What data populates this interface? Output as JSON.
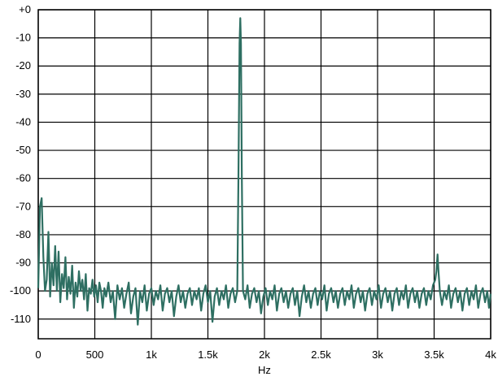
{
  "chart_data": {
    "type": "line",
    "title": "",
    "xlabel": "Hz",
    "ylabel": "",
    "xlim": [
      0,
      4000
    ],
    "ylim": [
      -117,
      0
    ],
    "grid": true,
    "x_ticks": [
      {
        "value": 0,
        "label": "0"
      },
      {
        "value": 500,
        "label": "500"
      },
      {
        "value": 1000,
        "label": "1k"
      },
      {
        "value": 1500,
        "label": "1.5k"
      },
      {
        "value": 2000,
        "label": "2k"
      },
      {
        "value": 2500,
        "label": "2.5k"
      },
      {
        "value": 3000,
        "label": "3k"
      },
      {
        "value": 3500,
        "label": "3.5k"
      },
      {
        "value": 4000,
        "label": "4k"
      }
    ],
    "y_ticks": [
      {
        "value": 0,
        "label": "+0"
      },
      {
        "value": -10,
        "label": "-10"
      },
      {
        "value": -20,
        "label": "-20"
      },
      {
        "value": -30,
        "label": "-30"
      },
      {
        "value": -40,
        "label": "-40"
      },
      {
        "value": -50,
        "label": "-50"
      },
      {
        "value": -60,
        "label": "-60"
      },
      {
        "value": -70,
        "label": "-70"
      },
      {
        "value": -80,
        "label": "-80"
      },
      {
        "value": -90,
        "label": "-90"
      },
      {
        "value": -100,
        "label": "-100"
      },
      {
        "value": -110,
        "label": "-110"
      }
    ],
    "series": [
      {
        "color": "#2e6f62",
        "points": [
          [
            0,
            -99
          ],
          [
            15,
            -70
          ],
          [
            30,
            -67
          ],
          [
            45,
            -88
          ],
          [
            60,
            -100
          ],
          [
            75,
            -96
          ],
          [
            90,
            -79
          ],
          [
            105,
            -102
          ],
          [
            120,
            -90
          ],
          [
            135,
            -98
          ],
          [
            150,
            -84
          ],
          [
            165,
            -100
          ],
          [
            180,
            -86
          ],
          [
            195,
            -104
          ],
          [
            210,
            -94
          ],
          [
            225,
            -99
          ],
          [
            240,
            -88
          ],
          [
            255,
            -103
          ],
          [
            270,
            -95
          ],
          [
            285,
            -101
          ],
          [
            300,
            -91
          ],
          [
            315,
            -106
          ],
          [
            330,
            -97
          ],
          [
            345,
            -102
          ],
          [
            360,
            -93
          ],
          [
            375,
            -100
          ],
          [
            390,
            -96
          ],
          [
            405,
            -103
          ],
          [
            420,
            -94
          ],
          [
            435,
            -107
          ],
          [
            450,
            -99
          ],
          [
            465,
            -101
          ],
          [
            480,
            -96
          ],
          [
            495,
            -102
          ],
          [
            510,
            -98
          ],
          [
            525,
            -104
          ],
          [
            540,
            -97
          ],
          [
            555,
            -100
          ],
          [
            570,
            -106
          ],
          [
            585,
            -99
          ],
          [
            600,
            -102
          ],
          [
            620,
            -97
          ],
          [
            640,
            -104
          ],
          [
            660,
            -100
          ],
          [
            680,
            -110
          ],
          [
            700,
            -98
          ],
          [
            720,
            -103
          ],
          [
            740,
            -99
          ],
          [
            760,
            -106
          ],
          [
            780,
            -101
          ],
          [
            800,
            -97
          ],
          [
            820,
            -108
          ],
          [
            840,
            -102
          ],
          [
            860,
            -99
          ],
          [
            880,
            -112
          ],
          [
            900,
            -100
          ],
          [
            920,
            -104
          ],
          [
            940,
            -98
          ],
          [
            960,
            -107
          ],
          [
            980,
            -101
          ],
          [
            1000,
            -99
          ],
          [
            1020,
            -105
          ],
          [
            1040,
            -100
          ],
          [
            1060,
            -103
          ],
          [
            1080,
            -98
          ],
          [
            1100,
            -107
          ],
          [
            1120,
            -101
          ],
          [
            1140,
            -99
          ],
          [
            1160,
            -104
          ],
          [
            1180,
            -100
          ],
          [
            1200,
            -109
          ],
          [
            1220,
            -102
          ],
          [
            1240,
            -98
          ],
          [
            1260,
            -104
          ],
          [
            1280,
            -100
          ],
          [
            1300,
            -106
          ],
          [
            1320,
            -101
          ],
          [
            1340,
            -99
          ],
          [
            1360,
            -105
          ],
          [
            1380,
            -100
          ],
          [
            1400,
            -103
          ],
          [
            1420,
            -99
          ],
          [
            1440,
            -107
          ],
          [
            1460,
            -101
          ],
          [
            1480,
            -98
          ],
          [
            1500,
            -104
          ],
          [
            1520,
            -100
          ],
          [
            1540,
            -111
          ],
          [
            1560,
            -102
          ],
          [
            1580,
            -99
          ],
          [
            1600,
            -105
          ],
          [
            1620,
            -100
          ],
          [
            1640,
            -103
          ],
          [
            1660,
            -98
          ],
          [
            1680,
            -106
          ],
          [
            1700,
            -101
          ],
          [
            1720,
            -99
          ],
          [
            1740,
            -104
          ],
          [
            1760,
            -100
          ],
          [
            1770,
            -60
          ],
          [
            1780,
            -12
          ],
          [
            1786,
            -3
          ],
          [
            1792,
            -12
          ],
          [
            1800,
            -60
          ],
          [
            1810,
            -100
          ],
          [
            1830,
            -103
          ],
          [
            1850,
            -98
          ],
          [
            1870,
            -106
          ],
          [
            1890,
            -101
          ],
          [
            1910,
            -99
          ],
          [
            1930,
            -104
          ],
          [
            1950,
            -100
          ],
          [
            1970,
            -108
          ],
          [
            1990,
            -102
          ],
          [
            2010,
            -99
          ],
          [
            2030,
            -105
          ],
          [
            2050,
            -100
          ],
          [
            2070,
            -103
          ],
          [
            2090,
            -98
          ],
          [
            2110,
            -107
          ],
          [
            2130,
            -101
          ],
          [
            2150,
            -99
          ],
          [
            2170,
            -104
          ],
          [
            2190,
            -100
          ],
          [
            2210,
            -106
          ],
          [
            2230,
            -101
          ],
          [
            2250,
            -99
          ],
          [
            2270,
            -105
          ],
          [
            2290,
            -100
          ],
          [
            2310,
            -109
          ],
          [
            2330,
            -102
          ],
          [
            2350,
            -98
          ],
          [
            2370,
            -104
          ],
          [
            2390,
            -100
          ],
          [
            2410,
            -106
          ],
          [
            2430,
            -101
          ],
          [
            2450,
            -99
          ],
          [
            2470,
            -105
          ],
          [
            2490,
            -100
          ],
          [
            2510,
            -103
          ],
          [
            2530,
            -98
          ],
          [
            2550,
            -107
          ],
          [
            2570,
            -101
          ],
          [
            2590,
            -99
          ],
          [
            2610,
            -104
          ],
          [
            2630,
            -100
          ],
          [
            2650,
            -106
          ],
          [
            2670,
            -101
          ],
          [
            2690,
            -99
          ],
          [
            2710,
            -105
          ],
          [
            2730,
            -100
          ],
          [
            2750,
            -103
          ],
          [
            2770,
            -98
          ],
          [
            2790,
            -106
          ],
          [
            2810,
            -101
          ],
          [
            2830,
            -99
          ],
          [
            2850,
            -104
          ],
          [
            2870,
            -100
          ],
          [
            2890,
            -107
          ],
          [
            2910,
            -101
          ],
          [
            2930,
            -99
          ],
          [
            2950,
            -105
          ],
          [
            2970,
            -100
          ],
          [
            2990,
            -103
          ],
          [
            3010,
            -98
          ],
          [
            3030,
            -106
          ],
          [
            3050,
            -101
          ],
          [
            3070,
            -99
          ],
          [
            3090,
            -104
          ],
          [
            3110,
            -100
          ],
          [
            3130,
            -107
          ],
          [
            3150,
            -101
          ],
          [
            3170,
            -99
          ],
          [
            3190,
            -105
          ],
          [
            3210,
            -100
          ],
          [
            3230,
            -103
          ],
          [
            3250,
            -98
          ],
          [
            3270,
            -106
          ],
          [
            3290,
            -101
          ],
          [
            3310,
            -99
          ],
          [
            3330,
            -104
          ],
          [
            3350,
            -100
          ],
          [
            3370,
            -106
          ],
          [
            3390,
            -101
          ],
          [
            3410,
            -99
          ],
          [
            3430,
            -105
          ],
          [
            3450,
            -100
          ],
          [
            3470,
            -103
          ],
          [
            3490,
            -98
          ],
          [
            3510,
            -96
          ],
          [
            3520,
            -93
          ],
          [
            3530,
            -87
          ],
          [
            3540,
            -94
          ],
          [
            3550,
            -100
          ],
          [
            3570,
            -105
          ],
          [
            3590,
            -100
          ],
          [
            3610,
            -103
          ],
          [
            3630,
            -98
          ],
          [
            3650,
            -106
          ],
          [
            3670,
            -101
          ],
          [
            3690,
            -99
          ],
          [
            3710,
            -104
          ],
          [
            3730,
            -100
          ],
          [
            3750,
            -107
          ],
          [
            3770,
            -101
          ],
          [
            3790,
            -99
          ],
          [
            3810,
            -105
          ],
          [
            3830,
            -100
          ],
          [
            3850,
            -103
          ],
          [
            3870,
            -98
          ],
          [
            3890,
            -106
          ],
          [
            3910,
            -101
          ],
          [
            3930,
            -99
          ],
          [
            3950,
            -104
          ],
          [
            3970,
            -100
          ],
          [
            3985,
            -106
          ],
          [
            4000,
            -101
          ]
        ]
      }
    ]
  }
}
